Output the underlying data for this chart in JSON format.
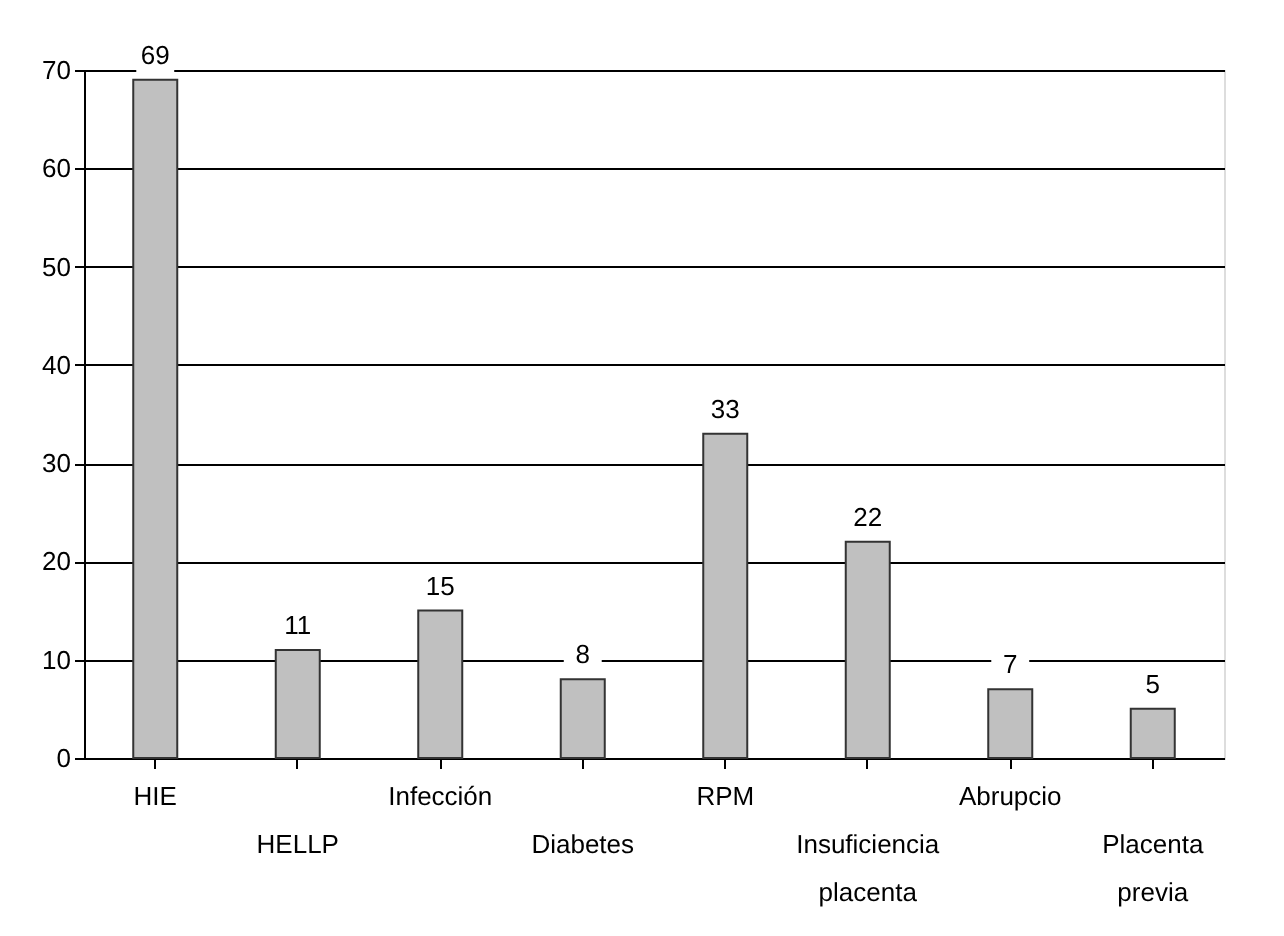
{
  "chart_data": {
    "type": "bar",
    "categories": [
      "HIE",
      "HELLP",
      "Infección",
      "Diabetes",
      "RPM",
      "Insuficiencia placenta",
      "Abrupcio",
      "Placenta previa"
    ],
    "values": [
      69,
      11,
      15,
      8,
      33,
      22,
      7,
      5
    ],
    "color": "#c0c0c0",
    "ylim": [
      0,
      70
    ],
    "yticks": [
      0,
      10,
      20,
      30,
      40,
      50,
      60,
      70
    ],
    "grid": "y",
    "data_labels": true
  }
}
